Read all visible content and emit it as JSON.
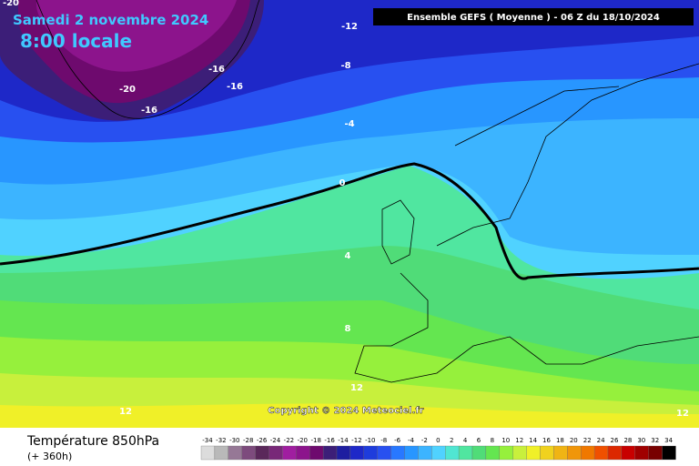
{
  "header": {
    "date": "Samedi 2 novembre 2024",
    "time": "8:00 locale",
    "run": "Ensemble GEFS  ( Moyenne )  -  06 Z du 18/10/2024"
  },
  "copyright": "Copyright © 2024 Meteociel.fr",
  "contour_labels": [
    "-20",
    "-12",
    "-8",
    "-16",
    "-16",
    "-20",
    "-16",
    "-4",
    "0",
    "4",
    "8",
    "12",
    "12",
    "12"
  ],
  "footer": {
    "title": "Température 850hPa",
    "lead": "(+ 360h)"
  },
  "legend": {
    "levels": [
      -34,
      -32,
      -30,
      -28,
      -26,
      -24,
      -22,
      -20,
      -18,
      -16,
      -14,
      -12,
      -10,
      -8,
      -6,
      -4,
      -2,
      0,
      2,
      4,
      6,
      8,
      10,
      12,
      14,
      16,
      18,
      20,
      22,
      24,
      26,
      28,
      30,
      32,
      34
    ],
    "colors": [
      "#dcdcdc",
      "#b9b9b9",
      "#967896",
      "#7d4b7d",
      "#5a285a",
      "#782878",
      "#a01ea0",
      "#8c148c",
      "#6e0a6e",
      "#3c1e78",
      "#1e1ea0",
      "#1e28c8",
      "#1e3cdc",
      "#2850f0",
      "#2878ff",
      "#2896ff",
      "#3cb4ff",
      "#50d2ff",
      "#50e6d2",
      "#50e6a0",
      "#50dc78",
      "#64e650",
      "#96f03c",
      "#c8f03c",
      "#f0f028",
      "#f0d21e",
      "#f0b414",
      "#f0960a",
      "#f07800",
      "#f05000",
      "#dc2800",
      "#c80000",
      "#a00000",
      "#780000",
      "#000000"
    ]
  }
}
